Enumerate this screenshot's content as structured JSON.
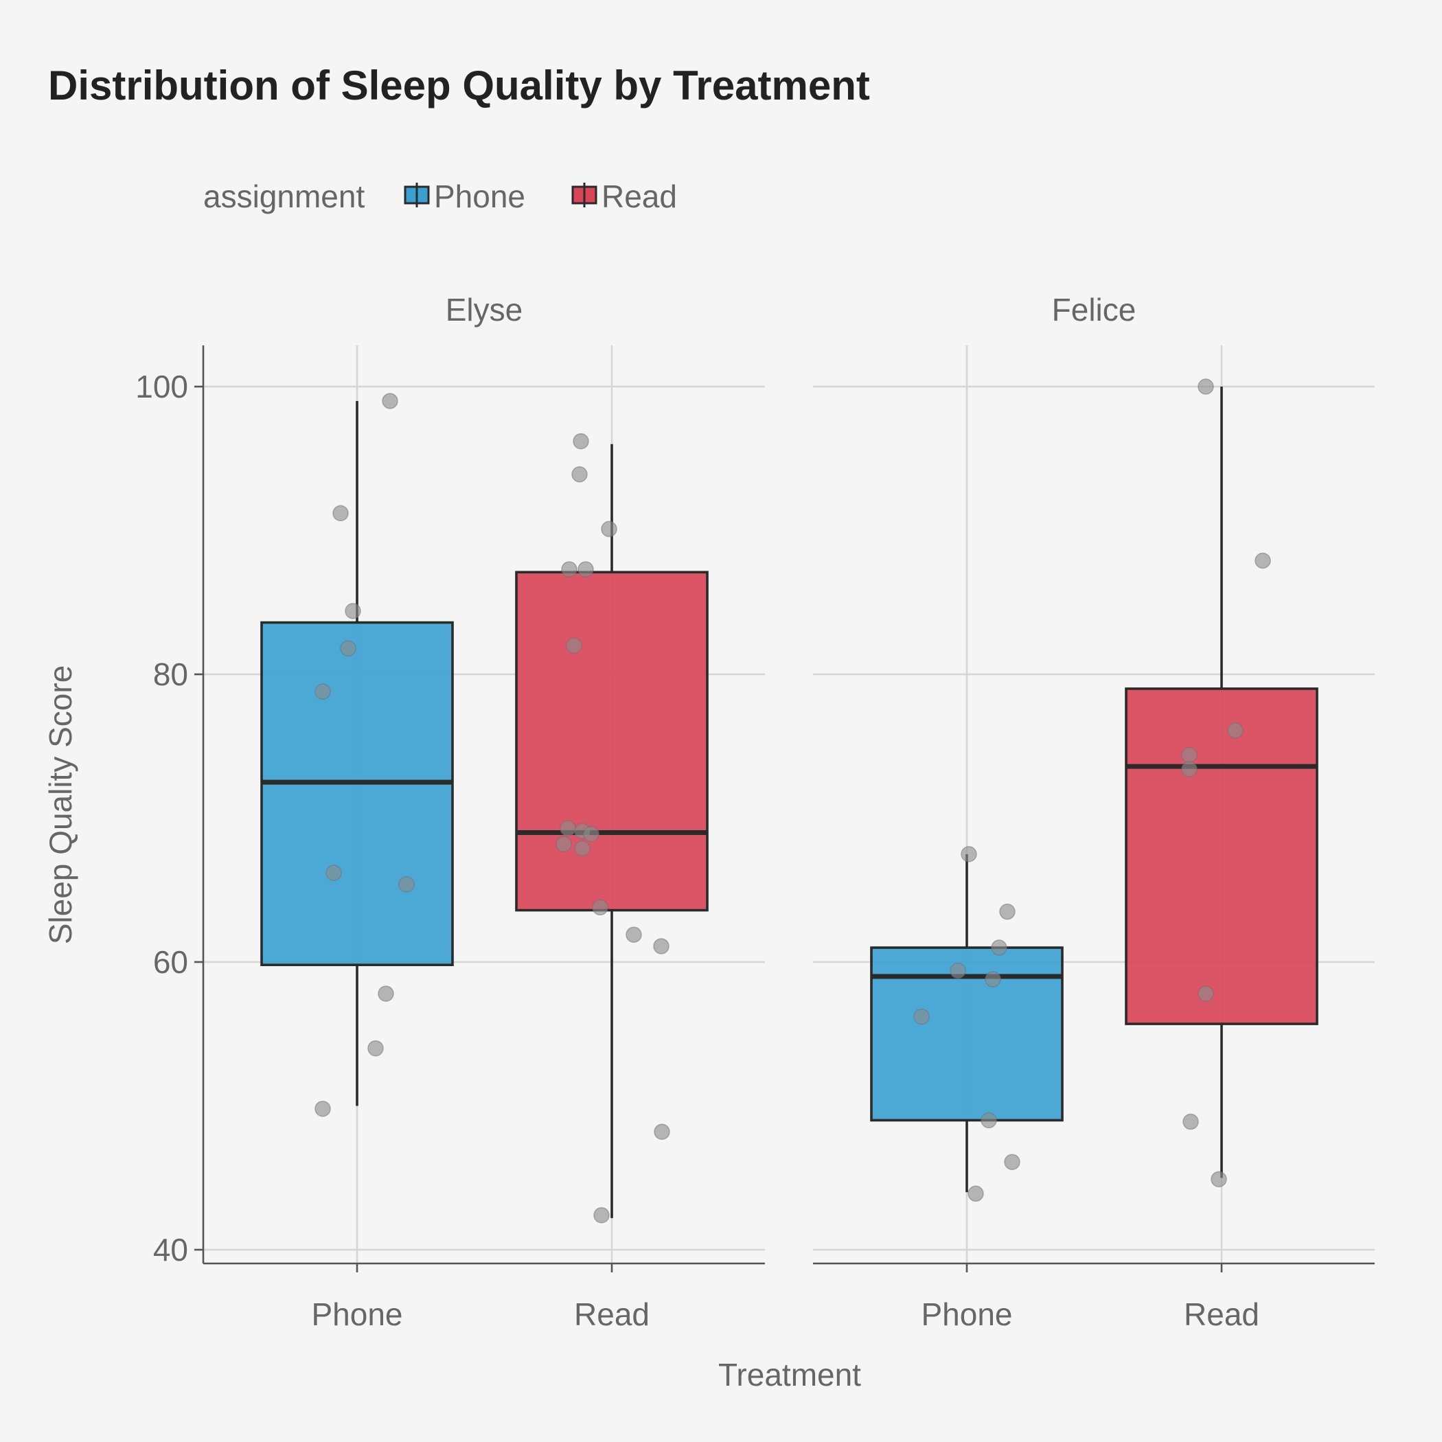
{
  "chart_data": {
    "type": "boxplot",
    "title": "Distribution of Sleep Quality by Treatment",
    "xlabel": "Treatment",
    "ylabel": "Sleep Quality Score",
    "ylim": [
      38,
      103
    ],
    "yticks": [
      40,
      60,
      80,
      100
    ],
    "categories": [
      "Phone",
      "Read"
    ],
    "legend": {
      "title": "assignment",
      "position": "top-left",
      "entries": [
        {
          "label": "Phone",
          "color": "#3aa0d2"
        },
        {
          "label": "Read",
          "color": "#d94456"
        }
      ]
    },
    "facets": [
      {
        "name": "Elyse",
        "boxes": [
          {
            "category": "Phone",
            "whisker_low": 50,
            "q1": 59.8,
            "median": 72.5,
            "q3": 83.6,
            "whisker_high": 99,
            "points": [
              99,
              91.2,
              84.4,
              81.8,
              78.8,
              66.2,
              65.4,
              57.8,
              54,
              49.8
            ]
          },
          {
            "category": "Read",
            "whisker_low": 42.2,
            "q1": 63.6,
            "median": 69,
            "q3": 87.1,
            "whisker_high": 96,
            "points": [
              96.2,
              93.9,
              90.1,
              87.3,
              87.3,
              82,
              69.3,
              69.1,
              68.9,
              68.2,
              67.9,
              63.8,
              61.9,
              61.1,
              48.2,
              42.4
            ]
          }
        ]
      },
      {
        "name": "Felice",
        "boxes": [
          {
            "category": "Phone",
            "whisker_low": 44,
            "q1": 49,
            "median": 59,
            "q3": 61,
            "whisker_high": 67.5,
            "points": [
              67.5,
              63.5,
              61,
              59.4,
              58.8,
              56.2,
              49,
              46.1,
              43.9
            ]
          },
          {
            "category": "Read",
            "whisker_low": 45,
            "q1": 55.7,
            "median": 73.6,
            "q3": 79,
            "whisker_high": 100,
            "points": [
              100,
              87.9,
              76.1,
              74.4,
              73.4,
              57.8,
              48.9,
              44.9
            ]
          }
        ]
      }
    ]
  }
}
